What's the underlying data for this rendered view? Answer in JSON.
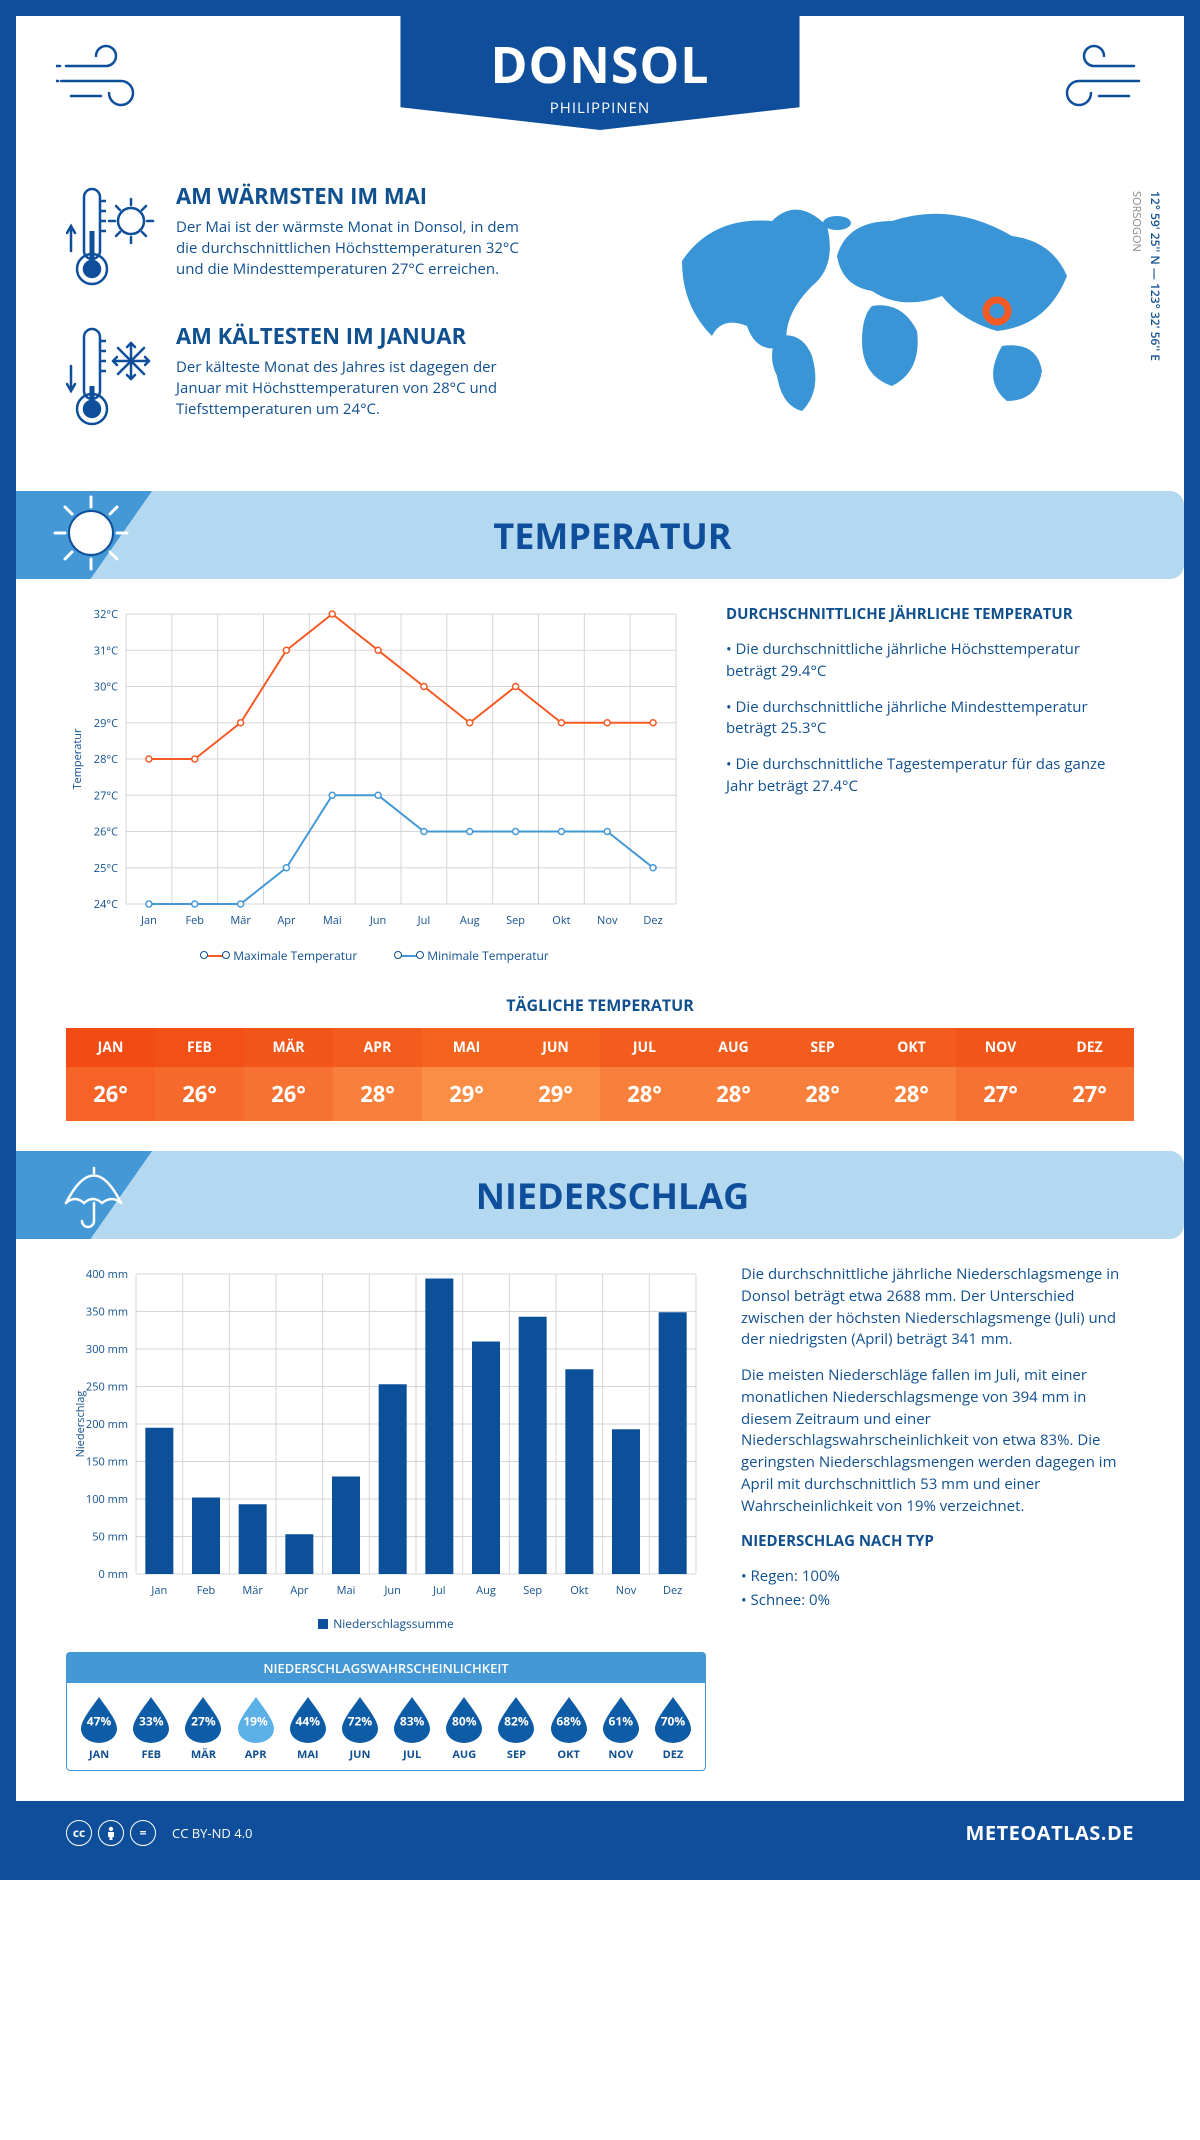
{
  "header": {
    "city": "DONSOL",
    "country": "PHILIPPINEN",
    "coords": "12° 59' 25'' N — 123° 32' 56'' E",
    "province": "SORSOGON"
  },
  "facts": {
    "warm": {
      "title": "AM WÄRMSTEN IM MAI",
      "text": "Der Mai ist der wärmste Monat in Donsol, in dem die durchschnittlichen Höchsttemperaturen 32°C und die Mindesttemperaturen 27°C erreichen."
    },
    "cold": {
      "title": "AM KÄLTESTEN IM JANUAR",
      "text": "Der kälteste Monat des Jahres ist dagegen der Januar mit Höchsttemperaturen von 28°C und Tiefsttemperaturen um 24°C."
    }
  },
  "sections": {
    "temperature": "TEMPERATUR",
    "precipitation": "NIEDERSCHLAG"
  },
  "months_short": [
    "Jan",
    "Feb",
    "Mär",
    "Apr",
    "Mai",
    "Jun",
    "Jul",
    "Aug",
    "Sep",
    "Okt",
    "Nov",
    "Dez"
  ],
  "months_upper": [
    "JAN",
    "FEB",
    "MÄR",
    "APR",
    "MAI",
    "JUN",
    "JUL",
    "AUG",
    "SEP",
    "OKT",
    "NOV",
    "DEZ"
  ],
  "temp_chart": {
    "type": "line",
    "ylabel": "Temperatur",
    "ymin": 24,
    "ymax": 32,
    "ystep": 1,
    "ytick_labels": [
      "24°C",
      "25°C",
      "26°C",
      "27°C",
      "28°C",
      "29°C",
      "30°C",
      "31°C",
      "32°C"
    ],
    "max_series": {
      "color": "#f55a25",
      "label": "Maximale Temperatur",
      "values": [
        28,
        28,
        29,
        31,
        32,
        31,
        30,
        29,
        30,
        29,
        29,
        29
      ]
    },
    "min_series": {
      "color": "#4598d6",
      "label": "Minimale Temperatur",
      "values": [
        24,
        24,
        24,
        25,
        27,
        27,
        26,
        26,
        26,
        26,
        26,
        25
      ]
    },
    "grid_color": "#d6d6d6",
    "line_width": 2,
    "marker_radius": 3,
    "background": "#ffffff"
  },
  "temp_info": {
    "title": "DURCHSCHNITTLICHE JÄHRLICHE TEMPERATUR",
    "b1": "• Die durchschnittliche jährliche Höchsttemperatur beträgt 29.4°C",
    "b2": "• Die durchschnittliche jährliche Mindesttemperatur beträgt 25.3°C",
    "b3": "• Die durchschnittliche Tagestemperatur für das ganze Jahr beträgt 27.4°C"
  },
  "daily_temp": {
    "title": "TÄGLICHE TEMPERATUR",
    "values": [
      26,
      26,
      26,
      28,
      29,
      29,
      28,
      28,
      28,
      28,
      27,
      27
    ],
    "header_hues": [
      "#f24b13",
      "#f25016",
      "#f25518",
      "#f35c1d",
      "#f4641f",
      "#f4641f",
      "#f35c1d",
      "#f35c1d",
      "#f35c1d",
      "#f35c1d",
      "#f25518",
      "#f25518"
    ],
    "cell_hues": [
      "#f66327",
      "#f66a2c",
      "#f77132",
      "#f8803c",
      "#fa8e44",
      "#fa8e44",
      "#f8803c",
      "#f8803c",
      "#f8803c",
      "#f8803c",
      "#f77132",
      "#f77132"
    ]
  },
  "precip_chart": {
    "type": "bar",
    "ylabel": "Niederschlag",
    "ymin": 0,
    "ymax": 400,
    "ystep": 50,
    "ytick_labels": [
      "0 mm",
      "50 mm",
      "100 mm",
      "150 mm",
      "200 mm",
      "250 mm",
      "300 mm",
      "350 mm",
      "400 mm"
    ],
    "values": [
      195,
      102,
      93,
      53,
      130,
      253,
      394,
      310,
      343,
      273,
      193,
      349
    ],
    "bar_color": "#0b5099",
    "legend": "Niederschlagssumme",
    "grid_color": "#d6d6d6",
    "bar_width_ratio": 0.6
  },
  "precip_info": {
    "p1": "Die durchschnittliche jährliche Niederschlagsmenge in Donsol beträgt etwa 2688 mm. Der Unterschied zwischen der höchsten Niederschlagsmenge (Juli) und der niedrigsten (April) beträgt 341 mm.",
    "p2": "Die meisten Niederschläge fallen im Juli, mit einer monatlichen Niederschlagsmenge von 394 mm in diesem Zeitraum und einer Niederschlagswahrscheinlichkeit von etwa 83%. Die geringsten Niederschlagsmengen werden dagegen im April mit durchschnittlich 53 mm und einer Wahrscheinlichkeit von 19% verzeichnet.",
    "type_title": "NIEDERSCHLAG NACH TYP",
    "type_rain": "• Regen: 100%",
    "type_snow": "• Schnee: 0%"
  },
  "precip_prob": {
    "title": "NIEDERSCHLAGSWAHRSCHEINLICHKEIT",
    "values": [
      47,
      33,
      27,
      19,
      44,
      72,
      83,
      80,
      82,
      68,
      61,
      70
    ],
    "min_index": 3,
    "drop_color": "#0e5ba6",
    "drop_color_min": "#5bb0e8"
  },
  "footer": {
    "license": "CC BY-ND 4.0",
    "brand": "METEOATLAS.DE"
  }
}
